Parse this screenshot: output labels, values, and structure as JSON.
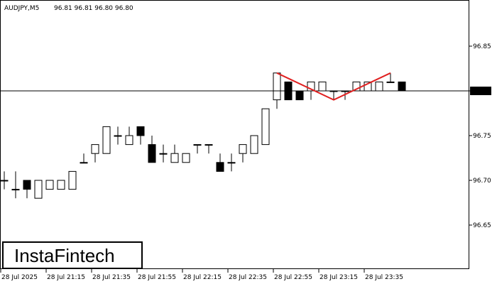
{
  "header": {
    "symbol_label": "AUDJPY,M5",
    "ohlc_text": "96.81 96.81 96.80 96.80"
  },
  "branding": {
    "logo_text": "InstaFintech"
  },
  "colors": {
    "background": "#ffffff",
    "pattern_line": "#e02020",
    "bear_candle": "#000000",
    "bull_candle": "#ffffff",
    "price_badge_bg": "#000000",
    "price_badge_text": "#ffffff"
  },
  "chart_data": {
    "type": "candlestick",
    "symbol": "AUDJPY",
    "timeframe": "M5",
    "y_axis": {
      "min": 96.6,
      "max": 96.9,
      "ticks": [
        "96.85",
        "96.80",
        "96.75",
        "96.70",
        "96.65"
      ]
    },
    "x_axis": {
      "ticks": [
        "28 Jul 2025",
        "28 Jul 21:15",
        "28 Jul 21:35",
        "28 Jul 21:55",
        "28 Jul 22:15",
        "28 Jul 22:35",
        "28 Jul 22:55",
        "28 Jul 23:15",
        "28 Jul 23:35"
      ]
    },
    "current_price": {
      "value": 96.8,
      "label": "96.80"
    },
    "pattern_line": {
      "points": [
        [
          24,
          96.82
        ],
        [
          29,
          96.79
        ],
        [
          34,
          96.82
        ]
      ]
    },
    "candles": [
      {
        "o": 96.7,
        "h": 96.71,
        "l": 96.69,
        "c": 96.7
      },
      {
        "o": 96.69,
        "h": 96.71,
        "l": 96.68,
        "c": 96.69
      },
      {
        "o": 96.7,
        "h": 96.7,
        "l": 96.68,
        "c": 96.69
      },
      {
        "o": 96.68,
        "h": 96.7,
        "l": 96.68,
        "c": 96.7
      },
      {
        "o": 96.69,
        "h": 96.7,
        "l": 96.69,
        "c": 96.7
      },
      {
        "o": 96.69,
        "h": 96.7,
        "l": 96.69,
        "c": 96.7
      },
      {
        "o": 96.69,
        "h": 96.71,
        "l": 96.69,
        "c": 96.71
      },
      {
        "o": 96.72,
        "h": 96.73,
        "l": 96.72,
        "c": 96.72
      },
      {
        "o": 96.73,
        "h": 96.74,
        "l": 96.72,
        "c": 96.74
      },
      {
        "o": 96.73,
        "h": 96.76,
        "l": 96.73,
        "c": 96.76
      },
      {
        "o": 96.75,
        "h": 96.76,
        "l": 96.74,
        "c": 96.75
      },
      {
        "o": 96.74,
        "h": 96.76,
        "l": 96.74,
        "c": 96.75
      },
      {
        "o": 96.76,
        "h": 96.76,
        "l": 96.74,
        "c": 96.75
      },
      {
        "o": 96.74,
        "h": 96.75,
        "l": 96.72,
        "c": 96.72
      },
      {
        "o": 96.73,
        "h": 96.74,
        "l": 96.72,
        "c": 96.73
      },
      {
        "o": 96.72,
        "h": 96.74,
        "l": 96.72,
        "c": 96.73
      },
      {
        "o": 96.72,
        "h": 96.73,
        "l": 96.72,
        "c": 96.73
      },
      {
        "o": 96.74,
        "h": 96.74,
        "l": 96.73,
        "c": 96.74
      },
      {
        "o": 96.74,
        "h": 96.74,
        "l": 96.73,
        "c": 96.74
      },
      {
        "o": 96.72,
        "h": 96.73,
        "l": 96.71,
        "c": 96.71
      },
      {
        "o": 96.72,
        "h": 96.73,
        "l": 96.71,
        "c": 96.72
      },
      {
        "o": 96.73,
        "h": 96.74,
        "l": 96.72,
        "c": 96.74
      },
      {
        "o": 96.73,
        "h": 96.75,
        "l": 96.73,
        "c": 96.75
      },
      {
        "o": 96.74,
        "h": 96.78,
        "l": 96.74,
        "c": 96.78
      },
      {
        "o": 96.79,
        "h": 96.82,
        "l": 96.78,
        "c": 96.82
      },
      {
        "o": 96.81,
        "h": 96.81,
        "l": 96.79,
        "c": 96.79
      },
      {
        "o": 96.8,
        "h": 96.8,
        "l": 96.79,
        "c": 96.79
      },
      {
        "o": 96.8,
        "h": 96.81,
        "l": 96.79,
        "c": 96.81
      },
      {
        "o": 96.8,
        "h": 96.81,
        "l": 96.8,
        "c": 96.81
      },
      {
        "o": 96.8,
        "h": 96.8,
        "l": 96.79,
        "c": 96.8
      },
      {
        "o": 96.8,
        "h": 96.8,
        "l": 96.79,
        "c": 96.8
      },
      {
        "o": 96.8,
        "h": 96.81,
        "l": 96.8,
        "c": 96.81
      },
      {
        "o": 96.8,
        "h": 96.81,
        "l": 96.8,
        "c": 96.81
      },
      {
        "o": 96.8,
        "h": 96.81,
        "l": 96.8,
        "c": 96.81
      },
      {
        "o": 96.81,
        "h": 96.82,
        "l": 96.81,
        "c": 96.81
      },
      {
        "o": 96.81,
        "h": 96.81,
        "l": 96.8,
        "c": 96.8
      }
    ]
  }
}
